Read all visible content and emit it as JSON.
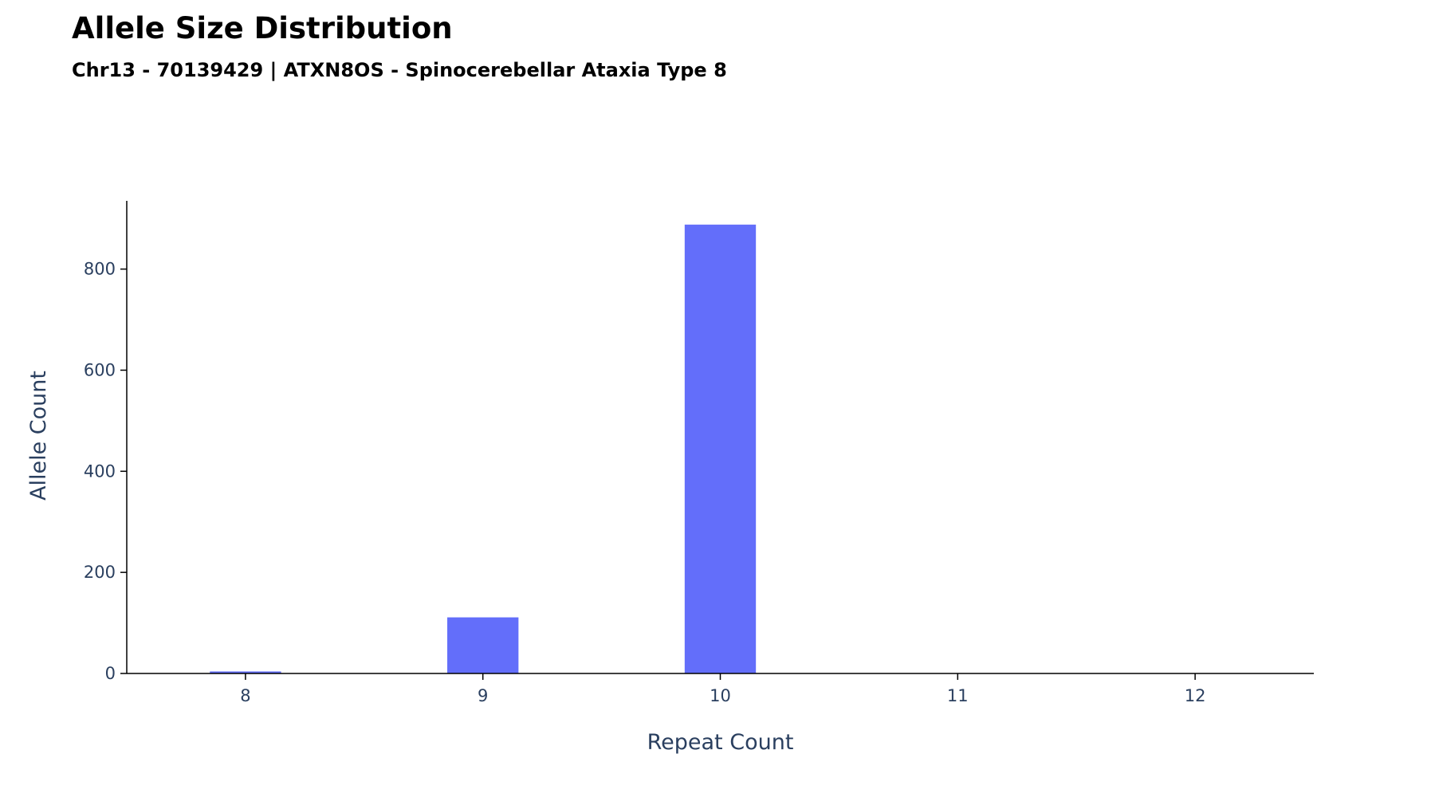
{
  "chart_data": {
    "type": "bar",
    "title": "Allele Size Distribution",
    "subtitle": "Chr13 - 70139429 | ATXN8OS - Spinocerebellar Ataxia Type 8",
    "xlabel": "Repeat Count",
    "ylabel": "Allele Count",
    "categories": [
      "8",
      "9",
      "10",
      "11",
      "12"
    ],
    "values": [
      4,
      111,
      888,
      0,
      0
    ],
    "x_ticks": [
      "8",
      "9",
      "10",
      "11",
      "12"
    ],
    "y_ticks": [
      "0",
      "200",
      "400",
      "600",
      "800"
    ],
    "ylim": [
      0,
      935
    ],
    "grid": false,
    "bar_color": "#636efa",
    "text_color": "#2a3f5f",
    "axis_color": "#000000"
  }
}
